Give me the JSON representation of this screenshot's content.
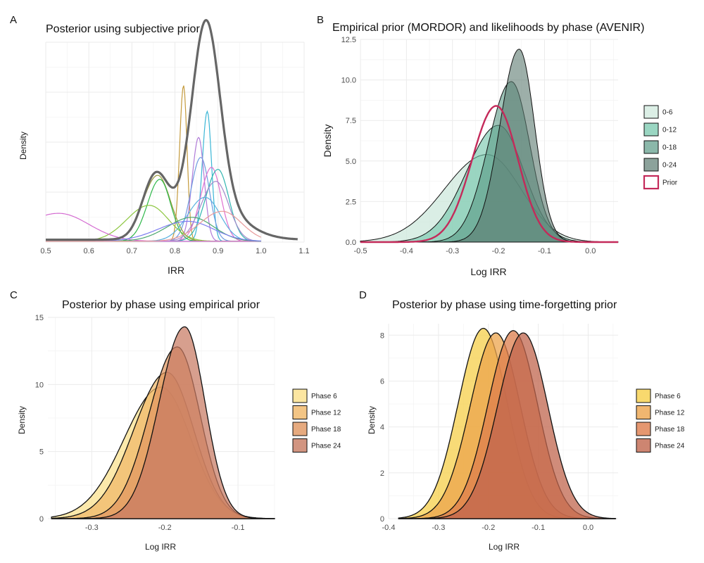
{
  "panels": {
    "A": {
      "label": "A",
      "title": "Posterior using subjective prior",
      "xlabel": "IRR",
      "ylabel": "Density"
    },
    "B": {
      "label": "B",
      "title": "Empirical prior (MORDOR) and likelihoods by phase (AVENIR)",
      "xlabel": "Log IRR",
      "ylabel": "Density"
    },
    "C": {
      "label": "C",
      "title": "Posterior by phase using empirical prior",
      "xlabel": "Log IRR",
      "ylabel": "Density"
    },
    "D": {
      "label": "D",
      "title": "Posterior by phase using time-forgetting prior",
      "xlabel": "Log IRR",
      "ylabel": "Density"
    }
  },
  "chart_data": [
    {
      "panel": "A",
      "type": "line",
      "title": "Posterior using subjective prior",
      "xlabel": "IRR",
      "ylabel": "Density",
      "xlim": [
        0.5,
        1.1
      ],
      "x_ticks": [
        "0.5",
        "0.6",
        "0.7",
        "0.8",
        "0.9",
        "1.0",
        "1.1"
      ],
      "y_ticks_shown": false,
      "ylim": [
        0,
        1.0
      ],
      "grid": true,
      "legend": "none",
      "pooled": {
        "color": "#666666",
        "mu": 0.872,
        "sd": 0.032,
        "peak": 1.0,
        "components": [
          {
            "mu": 0.872,
            "sd": 0.032,
            "h": 0.92
          },
          {
            "mu": 0.755,
            "sd": 0.03,
            "h": 0.3
          },
          {
            "mu": 0.88,
            "sd": 0.07,
            "h": 0.18
          }
        ]
      },
      "series": [
        {
          "color": "#c49a3c",
          "mu": 0.82,
          "sd": 0.008,
          "peak": 0.78
        },
        {
          "color": "#3bb6d6",
          "mu": 0.875,
          "sd": 0.01,
          "peak": 0.65
        },
        {
          "color": "#b07ad8",
          "mu": 0.855,
          "sd": 0.013,
          "peak": 0.52
        },
        {
          "color": "#6f9be0",
          "mu": 0.86,
          "sd": 0.02,
          "peak": 0.42
        },
        {
          "color": "#e070d0",
          "mu": 0.885,
          "sd": 0.022,
          "peak": 0.37
        },
        {
          "color": "#30b5b0",
          "mu": 0.9,
          "sd": 0.025,
          "peak": 0.36
        },
        {
          "color": "#9a9a3a",
          "mu": 0.76,
          "sd": 0.03,
          "peak": 0.33
        },
        {
          "color": "#2fb84a",
          "mu": 0.765,
          "sd": 0.025,
          "peak": 0.31
        },
        {
          "color": "#a38acb",
          "mu": 0.895,
          "sd": 0.03,
          "peak": 0.3
        },
        {
          "color": "#58b0e0",
          "mu": 0.87,
          "sd": 0.035,
          "peak": 0.22
        },
        {
          "color": "#8cc63f",
          "mu": 0.74,
          "sd": 0.045,
          "peak": 0.18
        },
        {
          "color": "#d46bd1",
          "mu": 0.53,
          "sd": 0.07,
          "peak": 0.14
        },
        {
          "color": "#4ca870",
          "mu": 0.84,
          "sd": 0.05,
          "peak": 0.12
        },
        {
          "color": "#7d7df0",
          "mu": 0.83,
          "sd": 0.06,
          "peak": 0.1
        },
        {
          "color": "#e89a9a",
          "mu": 0.91,
          "sd": 0.045,
          "peak": 0.15
        }
      ]
    },
    {
      "panel": "B",
      "type": "area",
      "title": "Empirical prior (MORDOR) and likelihoods by phase (AVENIR)",
      "xlabel": "Log IRR",
      "ylabel": "Density",
      "xlim": [
        -0.5,
        0.06
      ],
      "ylim": [
        0,
        12.5
      ],
      "x_ticks": [
        "-0.5",
        "-0.4",
        "-0.3",
        "-0.2",
        "-0.1",
        "0.0"
      ],
      "y_ticks": [
        "0.0",
        "2.5",
        "5.0",
        "7.5",
        "10.0",
        "12.5"
      ],
      "grid": true,
      "legend": "right",
      "series": [
        {
          "name": "0-6",
          "mean": -0.225,
          "peak": 5.4,
          "fill": "#cde8dc",
          "alpha": 0.75
        },
        {
          "name": "0-12",
          "mean": -0.2,
          "peak": 7.2,
          "fill": "#6fc4a8",
          "alpha": 0.6
        },
        {
          "name": "0-18",
          "mean": -0.172,
          "peak": 9.9,
          "fill": "#5a9a86",
          "alpha": 0.6
        },
        {
          "name": "0-24",
          "mean": -0.155,
          "peak": 11.9,
          "fill": "#5b7a70",
          "alpha": 0.6
        },
        {
          "name": "Prior",
          "mean": -0.205,
          "peak": 8.4,
          "stroke": "#c42a5a",
          "outline_only": true
        }
      ]
    },
    {
      "panel": "C",
      "type": "area",
      "title": "Posterior by phase using empirical prior",
      "xlabel": "Log IRR",
      "ylabel": "Density",
      "xlim": [
        -0.36,
        -0.05
      ],
      "ylim": [
        0,
        15
      ],
      "x_ticks": [
        "-0.3",
        "-0.2",
        "-0.1"
      ],
      "y_ticks": [
        "0",
        "5",
        "10",
        "15"
      ],
      "grid": true,
      "legend": "right",
      "series": [
        {
          "name": "Phase 6",
          "mean": -0.205,
          "peak": 9.8,
          "fill": "#fbe08a"
        },
        {
          "name": "Phase 12",
          "mean": -0.197,
          "peak": 10.9,
          "fill": "#f0b766"
        },
        {
          "name": "Phase 18",
          "mean": -0.183,
          "peak": 12.8,
          "fill": "#e0955f"
        },
        {
          "name": "Phase 24",
          "mean": -0.173,
          "peak": 14.3,
          "fill": "#c77a62"
        }
      ]
    },
    {
      "panel": "D",
      "type": "area",
      "title": "Posterior by phase using time-forgetting prior",
      "xlabel": "Log IRR",
      "ylabel": "Density",
      "xlim": [
        -0.4,
        0.06
      ],
      "ylim": [
        0,
        8.5
      ],
      "x_ticks": [
        "-0.4",
        "-0.3",
        "-0.2",
        "-0.1",
        "0.0"
      ],
      "y_ticks": [
        "0",
        "2",
        "4",
        "6",
        "8"
      ],
      "grid": true,
      "legend": "right",
      "series": [
        {
          "name": "Phase 6",
          "mean": -0.21,
          "peak": 8.3,
          "fill": "#f6cf4a"
        },
        {
          "name": "Phase 12",
          "mean": -0.185,
          "peak": 8.1,
          "fill": "#eca44c"
        },
        {
          "name": "Phase 18",
          "mean": -0.15,
          "peak": 8.2,
          "fill": "#de7d4c"
        },
        {
          "name": "Phase 24",
          "mean": -0.13,
          "peak": 8.1,
          "fill": "#c0664e"
        }
      ]
    }
  ]
}
